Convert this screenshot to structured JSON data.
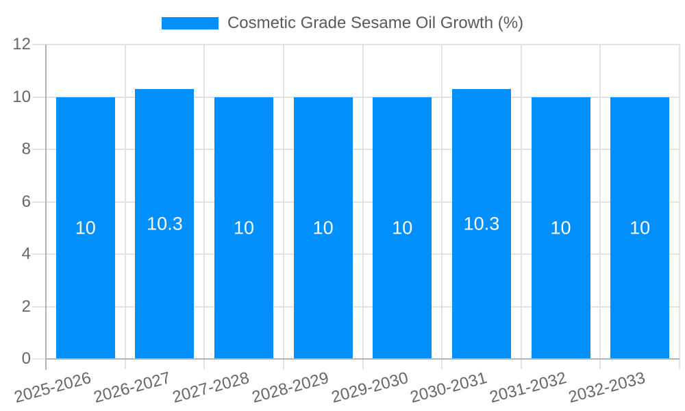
{
  "chart_data": {
    "type": "bar",
    "title": "",
    "legend": "Cosmetic Grade Sesame Oil Growth (%)",
    "legend_position": "top-center",
    "categories": [
      "2025-2026",
      "2026-2027",
      "2027-2028",
      "2028-2029",
      "2029-2030",
      "2030-2031",
      "2031-2032",
      "2032-2033"
    ],
    "values": [
      10,
      10.3,
      10,
      10,
      10,
      10.3,
      10,
      10
    ],
    "values_display": [
      "10",
      "10.3",
      "10",
      "10",
      "10",
      "10.3",
      "10",
      "10"
    ],
    "xlabel": "",
    "ylabel": "",
    "ylim": [
      0,
      12
    ],
    "yticks": [
      0,
      2,
      4,
      6,
      8,
      10,
      12
    ],
    "grid": true,
    "x_label_rotation_deg": -15,
    "colors": {
      "bar": "#008FFB",
      "grid": "#e3e3e3",
      "axis": "#b3b3b3",
      "tick_text": "#666666",
      "legend_text": "#595959",
      "data_label": "#ffffff"
    }
  }
}
